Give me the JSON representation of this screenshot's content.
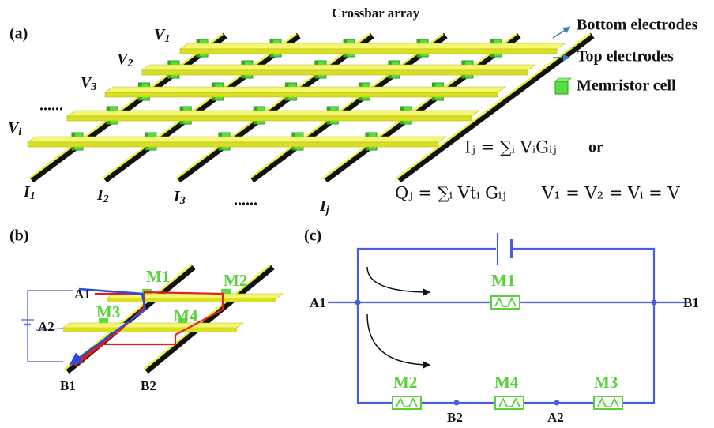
{
  "panel_a": {
    "label": "(a)",
    "title": "Crossbar array",
    "legend": [
      "Bottom electrodes",
      "Top electrodes",
      "Memristor cell"
    ],
    "row_labels": [
      {
        "base": "V",
        "sub": "1"
      },
      {
        "base": "V",
        "sub": "2"
      },
      {
        "base": "V",
        "sub": "3"
      },
      {
        "base": "V",
        "sub": "i"
      }
    ],
    "row_ellipsis": "......",
    "column_labels": [
      {
        "base": "I",
        "sub": "1"
      },
      {
        "base": "I",
        "sub": "2"
      },
      {
        "base": "I",
        "sub": "3"
      },
      {
        "base": "I",
        "sub": "j"
      }
    ],
    "column_ellipsis": "......",
    "equations": [
      "Iⱼ = ∑ᵢ VᵢGᵢⱼ",
      "or",
      "Qⱼ = ∑ᵢ Vtᵢ Gᵢⱼ",
      "V₁ = V₂ = Vᵢ = V"
    ]
  },
  "panel_b": {
    "label": "(b)",
    "cells": [
      "M1",
      "M2",
      "M3",
      "M4"
    ],
    "terminals": [
      "A1",
      "A2",
      "B1",
      "B2"
    ]
  },
  "panel_c": {
    "label": "(c)",
    "cells": [
      "M1",
      "M2",
      "M4",
      "M3"
    ],
    "terminals": [
      "A1",
      "B1",
      "B2",
      "A2"
    ]
  }
}
